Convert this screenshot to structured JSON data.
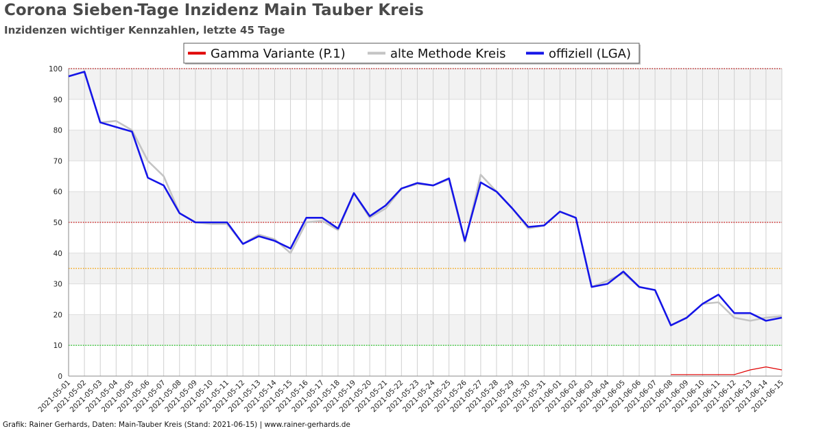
{
  "title": "Corona Sieben-Tage Inzidenz Main Tauber Kreis",
  "subtitle": "Inzidenzen wichtiger Kennzahlen, letzte 45 Tage",
  "footer": "Grafik: Rainer Gerhards, Daten: Main-Tauber Kreis (Stand: 2021-06-15) | www.rainer-gerhards.de",
  "chart_data": {
    "type": "line",
    "title": "Corona Sieben-Tage Inzidenz Main Tauber Kreis",
    "subtitle": "Inzidenzen wichtiger Kennzahlen, letzte 45 Tage",
    "xlabel": "",
    "ylabel": "",
    "ylim": [
      0,
      100
    ],
    "yticks": [
      0,
      10,
      20,
      30,
      40,
      50,
      60,
      70,
      80,
      90,
      100
    ],
    "grid": true,
    "legend_position": "top-center",
    "x": [
      "2021-05-01",
      "2021-05-02",
      "2021-05-03",
      "2021-05-04",
      "2021-05-05",
      "2021-05-06",
      "2021-05-07",
      "2021-05-08",
      "2021-05-09",
      "2021-05-10",
      "2021-05-11",
      "2021-05-12",
      "2021-05-13",
      "2021-05-14",
      "2021-05-15",
      "2021-05-16",
      "2021-05-17",
      "2021-05-18",
      "2021-05-19",
      "2021-05-20",
      "2021-05-21",
      "2021-05-22",
      "2021-05-23",
      "2021-05-24",
      "2021-05-25",
      "2021-05-26",
      "2021-05-27",
      "2021-05-28",
      "2021-05-29",
      "2021-05-30",
      "2021-05-31",
      "2021-06-01",
      "2021-06-02",
      "2021-06-03",
      "2021-06-04",
      "2021-06-05",
      "2021-06-06",
      "2021-06-07",
      "2021-06-08",
      "2021-06-09",
      "2021-06-10",
      "2021-06-11",
      "2021-06-12",
      "2021-06-13",
      "2021-06-14",
      "2021-06-15"
    ],
    "series": [
      {
        "name": "Gamma Variante (P.1)",
        "color": "#e00000",
        "values": [
          null,
          null,
          null,
          null,
          null,
          null,
          null,
          null,
          null,
          null,
          null,
          null,
          null,
          null,
          null,
          null,
          null,
          null,
          null,
          null,
          null,
          null,
          null,
          null,
          null,
          null,
          null,
          null,
          null,
          null,
          null,
          null,
          null,
          null,
          null,
          null,
          null,
          null,
          0.5,
          0.5,
          0.5,
          0.5,
          0.5,
          2,
          3,
          2
        ]
      },
      {
        "name": "alte Methode Kreis",
        "color": "#c4c4c4",
        "values": [
          97.5,
          99,
          82.5,
          83,
          80,
          70,
          65,
          53,
          50,
          49.5,
          49.5,
          43,
          46,
          44.5,
          40,
          50,
          50.5,
          47.5,
          59.5,
          51.5,
          54.5,
          61,
          62.5,
          62,
          64,
          43.5,
          65.5,
          60,
          54.5,
          48,
          49,
          53.5,
          51.5,
          29,
          31,
          33.5,
          29,
          28,
          16.5,
          19,
          23.5,
          24,
          19,
          18,
          19,
          19.5
        ]
      },
      {
        "name": "offiziell (LGA)",
        "color": "#1515e8",
        "values": [
          97.5,
          99,
          82.5,
          81,
          79.5,
          64.5,
          62,
          53,
          50,
          50,
          50,
          43,
          45.5,
          44,
          41.5,
          51.5,
          51.5,
          48,
          59.5,
          52,
          55.5,
          61,
          62.8,
          62,
          64.3,
          44,
          63,
          60,
          54.5,
          48.5,
          49,
          53.5,
          51.5,
          29,
          30,
          34,
          29,
          28,
          16.5,
          19,
          23.5,
          26.5,
          20.5,
          20.5,
          18,
          19
        ]
      }
    ],
    "reference_lines": [
      {
        "y": 100,
        "color": "#b30000"
      },
      {
        "y": 50,
        "color": "#cc0000"
      },
      {
        "y": 35,
        "color": "#f5a000"
      },
      {
        "y": 10,
        "color": "#22cc22"
      }
    ]
  }
}
